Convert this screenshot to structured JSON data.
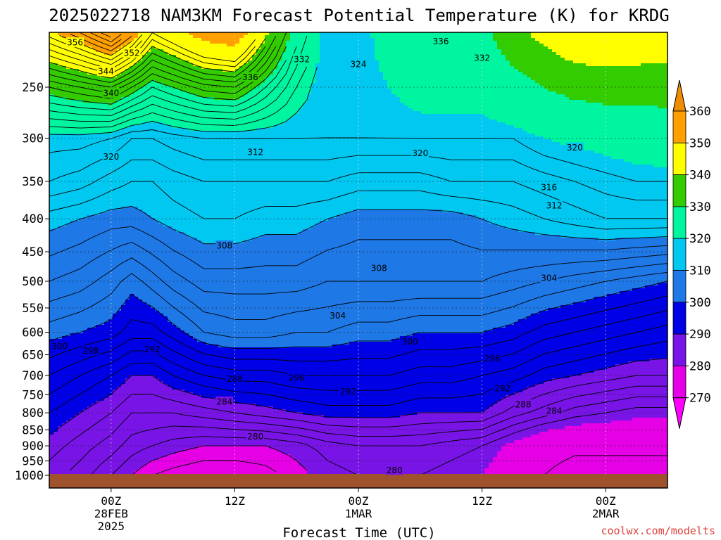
{
  "chart_data": {
    "type": "heatmap",
    "title": "2025022718 NAM3KM Forecast Potential Temperature (K) for KRDG",
    "xlabel": "Forecast Time (UTC)",
    "ylabel": "",
    "credit": "coolwx.com/modelts",
    "y_scale": "log-pressure",
    "y_ticks": [
      "250",
      "300",
      "350",
      "400",
      "450",
      "500",
      "550",
      "600",
      "650",
      "700",
      "750",
      "800",
      "850",
      "900",
      "950",
      "1000"
    ],
    "x_ticks": [
      {
        "hour": 6,
        "line1": "00Z",
        "line2": "28FEB",
        "line3": "2025"
      },
      {
        "hour": 18,
        "line1": "12Z",
        "line2": "",
        "line3": ""
      },
      {
        "hour": 30,
        "line1": "00Z",
        "line2": "1MAR",
        "line3": ""
      },
      {
        "hour": 42,
        "line1": "12Z",
        "line2": "",
        "line3": ""
      },
      {
        "hour": 54,
        "line1": "00Z",
        "line2": "2MAR",
        "line3": ""
      }
    ],
    "x_range_hours": [
      0,
      60
    ],
    "y_range_hpa": [
      200,
      1020
    ],
    "ground_level_hpa": 995,
    "grid": "dotted at tick marks",
    "legend": "right colorbar",
    "colorbar": {
      "labels": [
        "360",
        "350",
        "340",
        "330",
        "320",
        "310",
        "300",
        "290",
        "280",
        "270"
      ],
      "bands": [
        {
          "min": 350,
          "max": 360,
          "color": "#ff9f00"
        },
        {
          "min": 340,
          "max": 350,
          "color": "#ffff00"
        },
        {
          "min": 330,
          "max": 340,
          "color": "#33cc00"
        },
        {
          "min": 320,
          "max": 330,
          "color": "#00f5a0"
        },
        {
          "min": 310,
          "max": 320,
          "color": "#00c8f0"
        },
        {
          "min": 300,
          "max": 310,
          "color": "#1e78e6"
        },
        {
          "min": 290,
          "max": 300,
          "color": "#0000e6"
        },
        {
          "min": 280,
          "max": 290,
          "color": "#7814e6"
        },
        {
          "min": 270,
          "max": 280,
          "color": "#e600e6"
        }
      ],
      "top_color": "#f08c00",
      "bottom_color": "#ff00ff"
    },
    "ground_color": "#a0522d",
    "isotherm_profiles_k": {
      "hours": [
        0,
        3,
        6,
        8,
        10,
        12,
        15,
        18,
        21,
        24,
        27,
        30,
        33,
        36,
        39,
        42,
        45,
        48,
        51,
        54,
        57,
        60
      ],
      "p250": [
        332,
        334,
        336,
        332,
        328,
        330,
        333,
        334,
        328,
        322,
        318,
        318,
        320,
        322,
        322,
        322,
        326,
        330,
        333,
        334,
        334,
        334
      ],
      "p300": [
        319,
        319,
        318,
        316,
        316,
        317,
        318,
        318,
        318,
        318,
        318,
        318,
        318,
        318,
        318,
        318,
        318,
        320,
        321,
        322,
        323,
        324
      ],
      "p350": [
        316,
        315,
        313,
        312,
        312,
        313,
        314,
        314,
        314,
        314,
        314,
        313,
        313,
        313,
        314,
        314,
        314,
        315,
        316,
        317,
        318,
        318
      ],
      "p400": [
        311,
        310,
        309,
        309,
        310,
        311,
        312,
        312,
        311,
        311,
        310,
        309,
        309,
        309,
        309,
        310,
        311,
        312,
        313,
        314,
        314,
        314
      ],
      "p500": [
        306,
        305,
        303,
        301,
        303,
        305,
        307,
        307,
        307,
        307,
        306,
        306,
        306,
        306,
        306,
        306,
        305,
        304,
        303,
        302,
        301,
        300
      ],
      "p600": [
        301,
        300,
        299,
        297,
        297,
        299,
        302,
        303,
        303,
        302,
        302,
        301,
        301,
        300,
        300,
        300,
        299,
        297,
        296,
        295,
        294,
        293
      ],
      "p700": [
        296,
        294,
        292,
        290,
        290,
        292,
        294,
        295,
        295,
        296,
        296,
        296,
        296,
        295,
        295,
        294,
        293,
        291,
        290,
        289,
        288,
        288
      ],
      "p800": [
        292,
        290,
        288,
        286,
        286,
        286,
        287,
        288,
        289,
        290,
        291,
        291,
        291,
        290,
        290,
        290,
        287,
        285,
        283,
        282,
        281,
        281
      ],
      "p900": [
        289,
        287,
        285,
        283,
        282,
        281,
        280,
        280,
        280,
        281,
        283,
        284,
        284,
        284,
        283,
        282,
        279,
        276,
        275,
        275,
        275,
        275
      ],
      "p1000": [
        287,
        285,
        282,
        280,
        278,
        277,
        276,
        276,
        277,
        279,
        281,
        282,
        282,
        282,
        281,
        280,
        277,
        274,
        272,
        272,
        272,
        272
      ]
    },
    "contour_labels": [
      {
        "text": "356",
        "hour": 2.5,
        "p": 213
      },
      {
        "text": "352",
        "hour": 8,
        "p": 221
      },
      {
        "text": "344",
        "hour": 5.5,
        "p": 236
      },
      {
        "text": "340",
        "hour": 6,
        "p": 255
      },
      {
        "text": "336",
        "hour": 19.5,
        "p": 241
      },
      {
        "text": "332",
        "hour": 24.5,
        "p": 226
      },
      {
        "text": "324",
        "hour": 30,
        "p": 230
      },
      {
        "text": "336",
        "hour": 38,
        "p": 212
      },
      {
        "text": "332",
        "hour": 42,
        "p": 225
      },
      {
        "text": "320",
        "hour": 6,
        "p": 320
      },
      {
        "text": "312",
        "hour": 20,
        "p": 315
      },
      {
        "text": "320",
        "hour": 36,
        "p": 316
      },
      {
        "text": "320",
        "hour": 51,
        "p": 310
      },
      {
        "text": "316",
        "hour": 48.5,
        "p": 357
      },
      {
        "text": "312",
        "hour": 49,
        "p": 381
      },
      {
        "text": "308",
        "hour": 17,
        "p": 440
      },
      {
        "text": "308",
        "hour": 32,
        "p": 477
      },
      {
        "text": "304",
        "hour": 48.5,
        "p": 494
      },
      {
        "text": "304",
        "hour": 28,
        "p": 565
      },
      {
        "text": "300",
        "hour": 1,
        "p": 630
      },
      {
        "text": "298",
        "hour": 4,
        "p": 640
      },
      {
        "text": "292",
        "hour": 10,
        "p": 637
      },
      {
        "text": "300",
        "hour": 35,
        "p": 620
      },
      {
        "text": "296",
        "hour": 43,
        "p": 658
      },
      {
        "text": "288",
        "hour": 18,
        "p": 708
      },
      {
        "text": "296",
        "hour": 24,
        "p": 705
      },
      {
        "text": "292",
        "hour": 29,
        "p": 741
      },
      {
        "text": "292",
        "hour": 44,
        "p": 732
      },
      {
        "text": "284",
        "hour": 17,
        "p": 768
      },
      {
        "text": "288",
        "hour": 46,
        "p": 776
      },
      {
        "text": "284",
        "hour": 49,
        "p": 794
      },
      {
        "text": "280",
        "hour": 20,
        "p": 870
      },
      {
        "text": "280",
        "hour": 33.5,
        "p": 981
      }
    ]
  }
}
